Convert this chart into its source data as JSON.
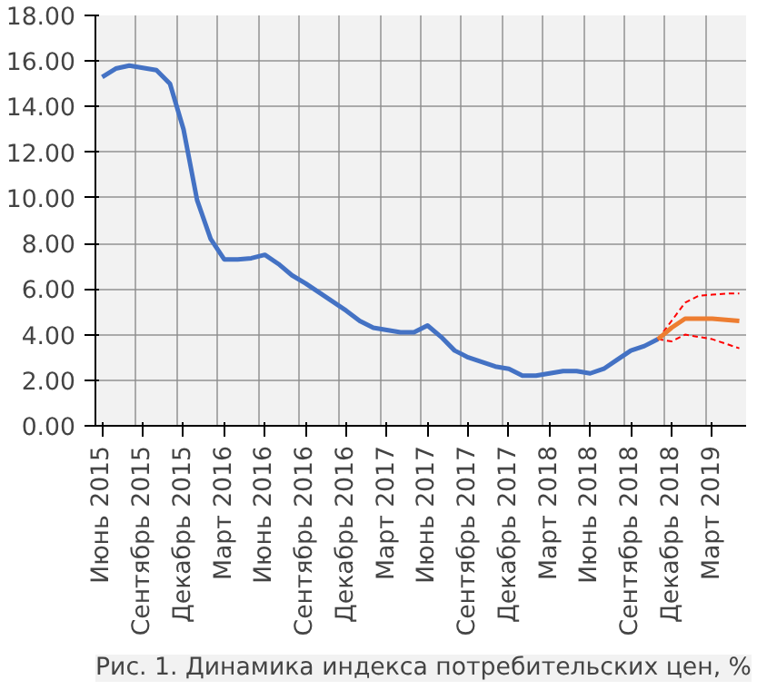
{
  "chart_data": {
    "type": "line",
    "categories": [
      "Июнь 2015",
      null,
      null,
      "Сентябрь 2015",
      null,
      null,
      "Декабрь 2015",
      null,
      null,
      "Март 2016",
      null,
      null,
      "Июнь 2016",
      null,
      null,
      "Сентябрь 2016",
      null,
      null,
      "Декабрь 2016",
      null,
      null,
      "Март 2017",
      null,
      null,
      "Июнь 2017",
      null,
      null,
      "Сентябрь 2017",
      null,
      null,
      "Декабрь 2017",
      null,
      null,
      "Март 2018",
      null,
      null,
      "Июнь 2018",
      null,
      null,
      "Сентябрь 2018",
      null,
      null,
      "Декабрь 2018",
      null,
      null,
      "Март 2019",
      null,
      null
    ],
    "series": [
      {
        "color": "#4472c4",
        "values": [
          15.3,
          15.67,
          15.8,
          15.7,
          15.6,
          15.0,
          13.0,
          9.9,
          8.2,
          7.3,
          7.3,
          7.35,
          7.5,
          7.1,
          6.6,
          6.25,
          5.85,
          5.45,
          5.05,
          4.6,
          4.3,
          4.2,
          4.1,
          4.1,
          4.4,
          3.9,
          3.3,
          3.0,
          2.8,
          2.6,
          2.5,
          2.2,
          2.2,
          2.3,
          2.4,
          2.4,
          2.3,
          2.5,
          2.9,
          3.3,
          3.5,
          3.8,
          null,
          null,
          null,
          null,
          null,
          null
        ]
      },
      {
        "color": "#ff0000",
        "line_style": "dashed",
        "values": [
          null,
          null,
          null,
          null,
          null,
          null,
          null,
          null,
          null,
          null,
          null,
          null,
          null,
          null,
          null,
          null,
          null,
          null,
          null,
          null,
          null,
          null,
          null,
          null,
          null,
          null,
          null,
          null,
          null,
          null,
          null,
          null,
          null,
          null,
          null,
          null,
          null,
          null,
          null,
          null,
          null,
          3.8,
          3.7,
          4.0,
          3.9,
          3.8,
          3.6,
          3.4
        ]
      },
      {
        "color": "#ff0000",
        "line_style": "dashed",
        "values": [
          null,
          null,
          null,
          null,
          null,
          null,
          null,
          null,
          null,
          null,
          null,
          null,
          null,
          null,
          null,
          null,
          null,
          null,
          null,
          null,
          null,
          null,
          null,
          null,
          null,
          null,
          null,
          null,
          null,
          null,
          null,
          null,
          null,
          null,
          null,
          null,
          null,
          null,
          null,
          null,
          null,
          3.8,
          4.6,
          5.4,
          5.7,
          5.75,
          5.8,
          5.8
        ]
      },
      {
        "color": "#ed7d31",
        "values": [
          null,
          null,
          null,
          null,
          null,
          null,
          null,
          null,
          null,
          null,
          null,
          null,
          null,
          null,
          null,
          null,
          null,
          null,
          null,
          null,
          null,
          null,
          null,
          null,
          null,
          null,
          null,
          null,
          null,
          null,
          null,
          null,
          null,
          null,
          null,
          null,
          null,
          null,
          null,
          null,
          null,
          3.8,
          4.3,
          4.7,
          4.7,
          4.7,
          4.65,
          4.6
        ]
      }
    ],
    "ylim": [
      0,
      18
    ],
    "yticks": [
      {
        "value": 0,
        "label": "0.00"
      },
      {
        "value": 2,
        "label": "2.00"
      },
      {
        "value": 4,
        "label": "4.00"
      },
      {
        "value": 6,
        "label": "6.00"
      },
      {
        "value": 8,
        "label": "8.00"
      },
      {
        "value": 10,
        "label": "10.00"
      },
      {
        "value": 12,
        "label": "12.00"
      },
      {
        "value": 14,
        "label": "14.00"
      },
      {
        "value": 16,
        "label": "16.00"
      },
      {
        "value": 18,
        "label": "18.00"
      }
    ],
    "grid": true,
    "annotations": [
      "Рис. 1. Динамика индекса потребительских цен, %"
    ]
  }
}
